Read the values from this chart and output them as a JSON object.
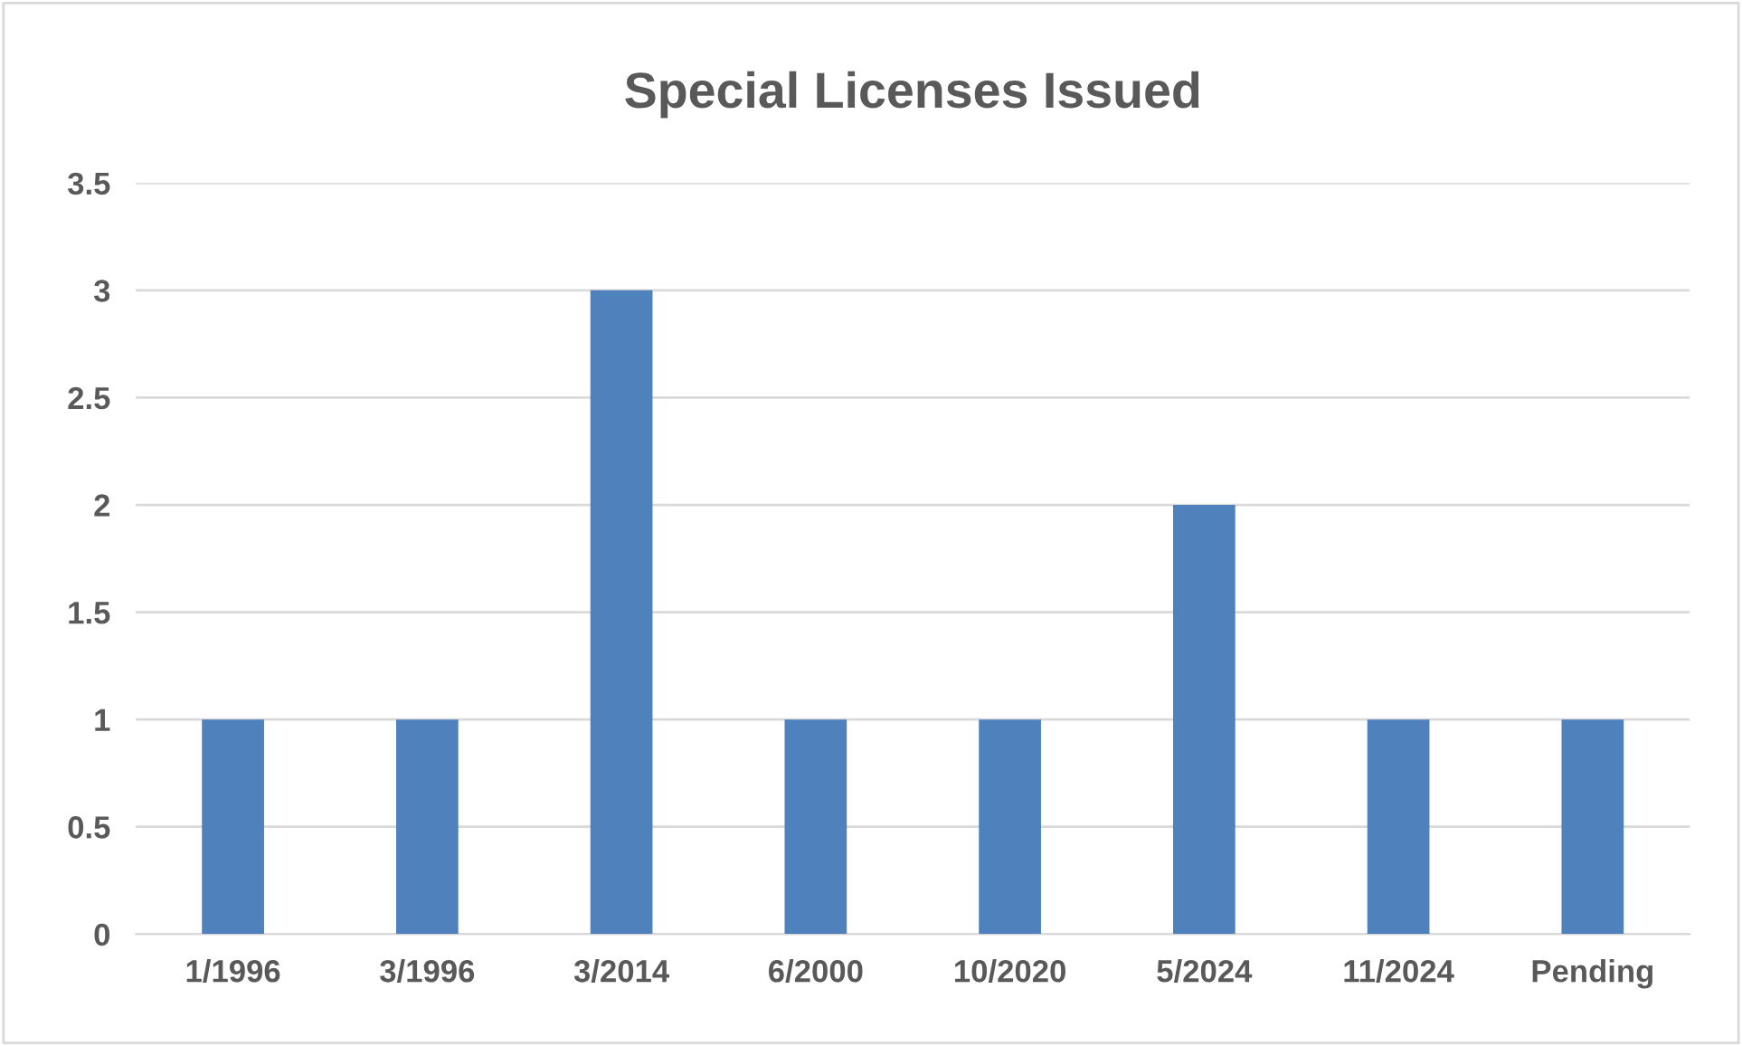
{
  "chart_data": {
    "type": "bar",
    "title": "Special Licenses Issued",
    "categories": [
      "1/1996",
      "3/1996",
      "3/2014",
      "6/2000",
      "10/2020",
      "5/2024",
      "11/2024",
      "Pending"
    ],
    "values": [
      1,
      1,
      3,
      1,
      1,
      2,
      1,
      1
    ],
    "color": "#4f81bd",
    "ylim": [
      0,
      3.5
    ],
    "yticks": [
      0,
      0.5,
      1,
      1.5,
      2,
      2.5,
      3,
      3.5
    ],
    "grid": "y"
  }
}
